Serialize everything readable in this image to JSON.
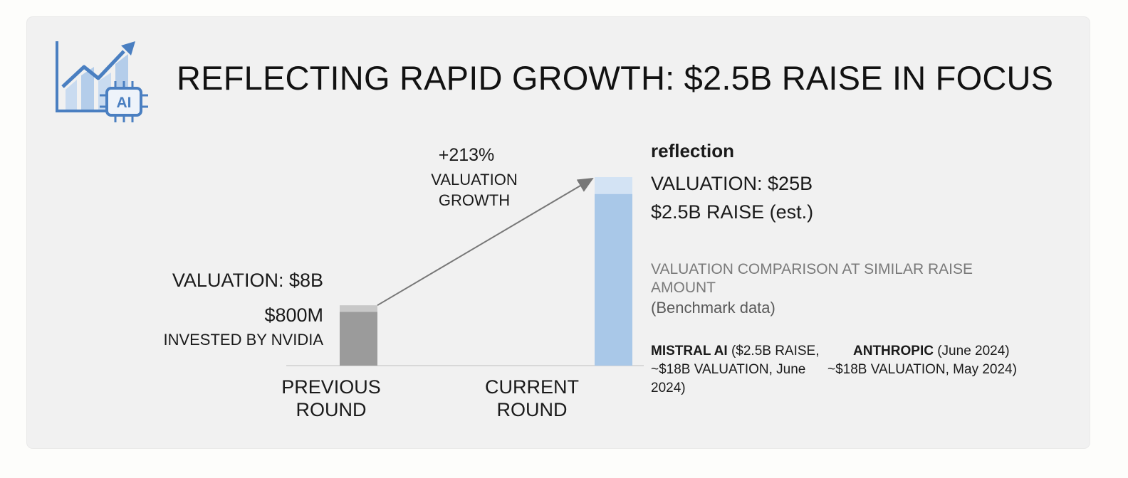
{
  "title": "REFLECTING RAPID GROWTH: $2.5B RAISE IN FOCUS",
  "logo": {
    "icon": "growth-chart-ai-chip-icon",
    "chip_text": "AI",
    "color": "#4a7fc1"
  },
  "growth": {
    "percent": "+213%",
    "line1": "VALUATION",
    "line2": "GROWTH"
  },
  "previous_round": {
    "valuation_label": "VALUATION: $8B",
    "amount_label": "$800M",
    "investor_label": "INVESTED BY NVIDIA",
    "category_line1": "PREVIOUS",
    "category_line2": "ROUND"
  },
  "current_round": {
    "company": "reflection",
    "valuation_label": "VALUATION: $25B",
    "raise_label": "$2.5B RAISE (est.)",
    "category_line1": "CURRENT",
    "category_line2": "ROUND"
  },
  "comparison": {
    "title": "VALUATION COMPARISON AT SIMILAR RAISE AMOUNT",
    "subtitle": "(Benchmark data)",
    "items": [
      {
        "name": "MISTRAL AI",
        "detail": " ($2.5B RAISE, ~$18B VALUATION, June 2024)"
      },
      {
        "name": "ANTHROPIC",
        "detail": " (June 2024)",
        "detail2": "~$18B VALUATION, May 2024)"
      }
    ]
  },
  "chart_data": {
    "type": "bar",
    "title": "REFLECTING RAPID GROWTH: $2.5B RAISE IN FOCUS",
    "categories": [
      "PREVIOUS ROUND",
      "CURRENT ROUND"
    ],
    "series": [
      {
        "name": "Valuation ($B)",
        "values": [
          8,
          25
        ]
      },
      {
        "name": "Raise ($B)",
        "values": [
          0.8,
          2.5
        ]
      }
    ],
    "annotation": "+213% VALUATION GROWTH",
    "ylim": [
      0,
      25
    ],
    "colors": {
      "previous": "#9b9b9b",
      "previous_top": "#c8c8c8",
      "current": "#a9c8e8",
      "current_top": "#d3e3f4",
      "arrow": "#777777"
    }
  }
}
